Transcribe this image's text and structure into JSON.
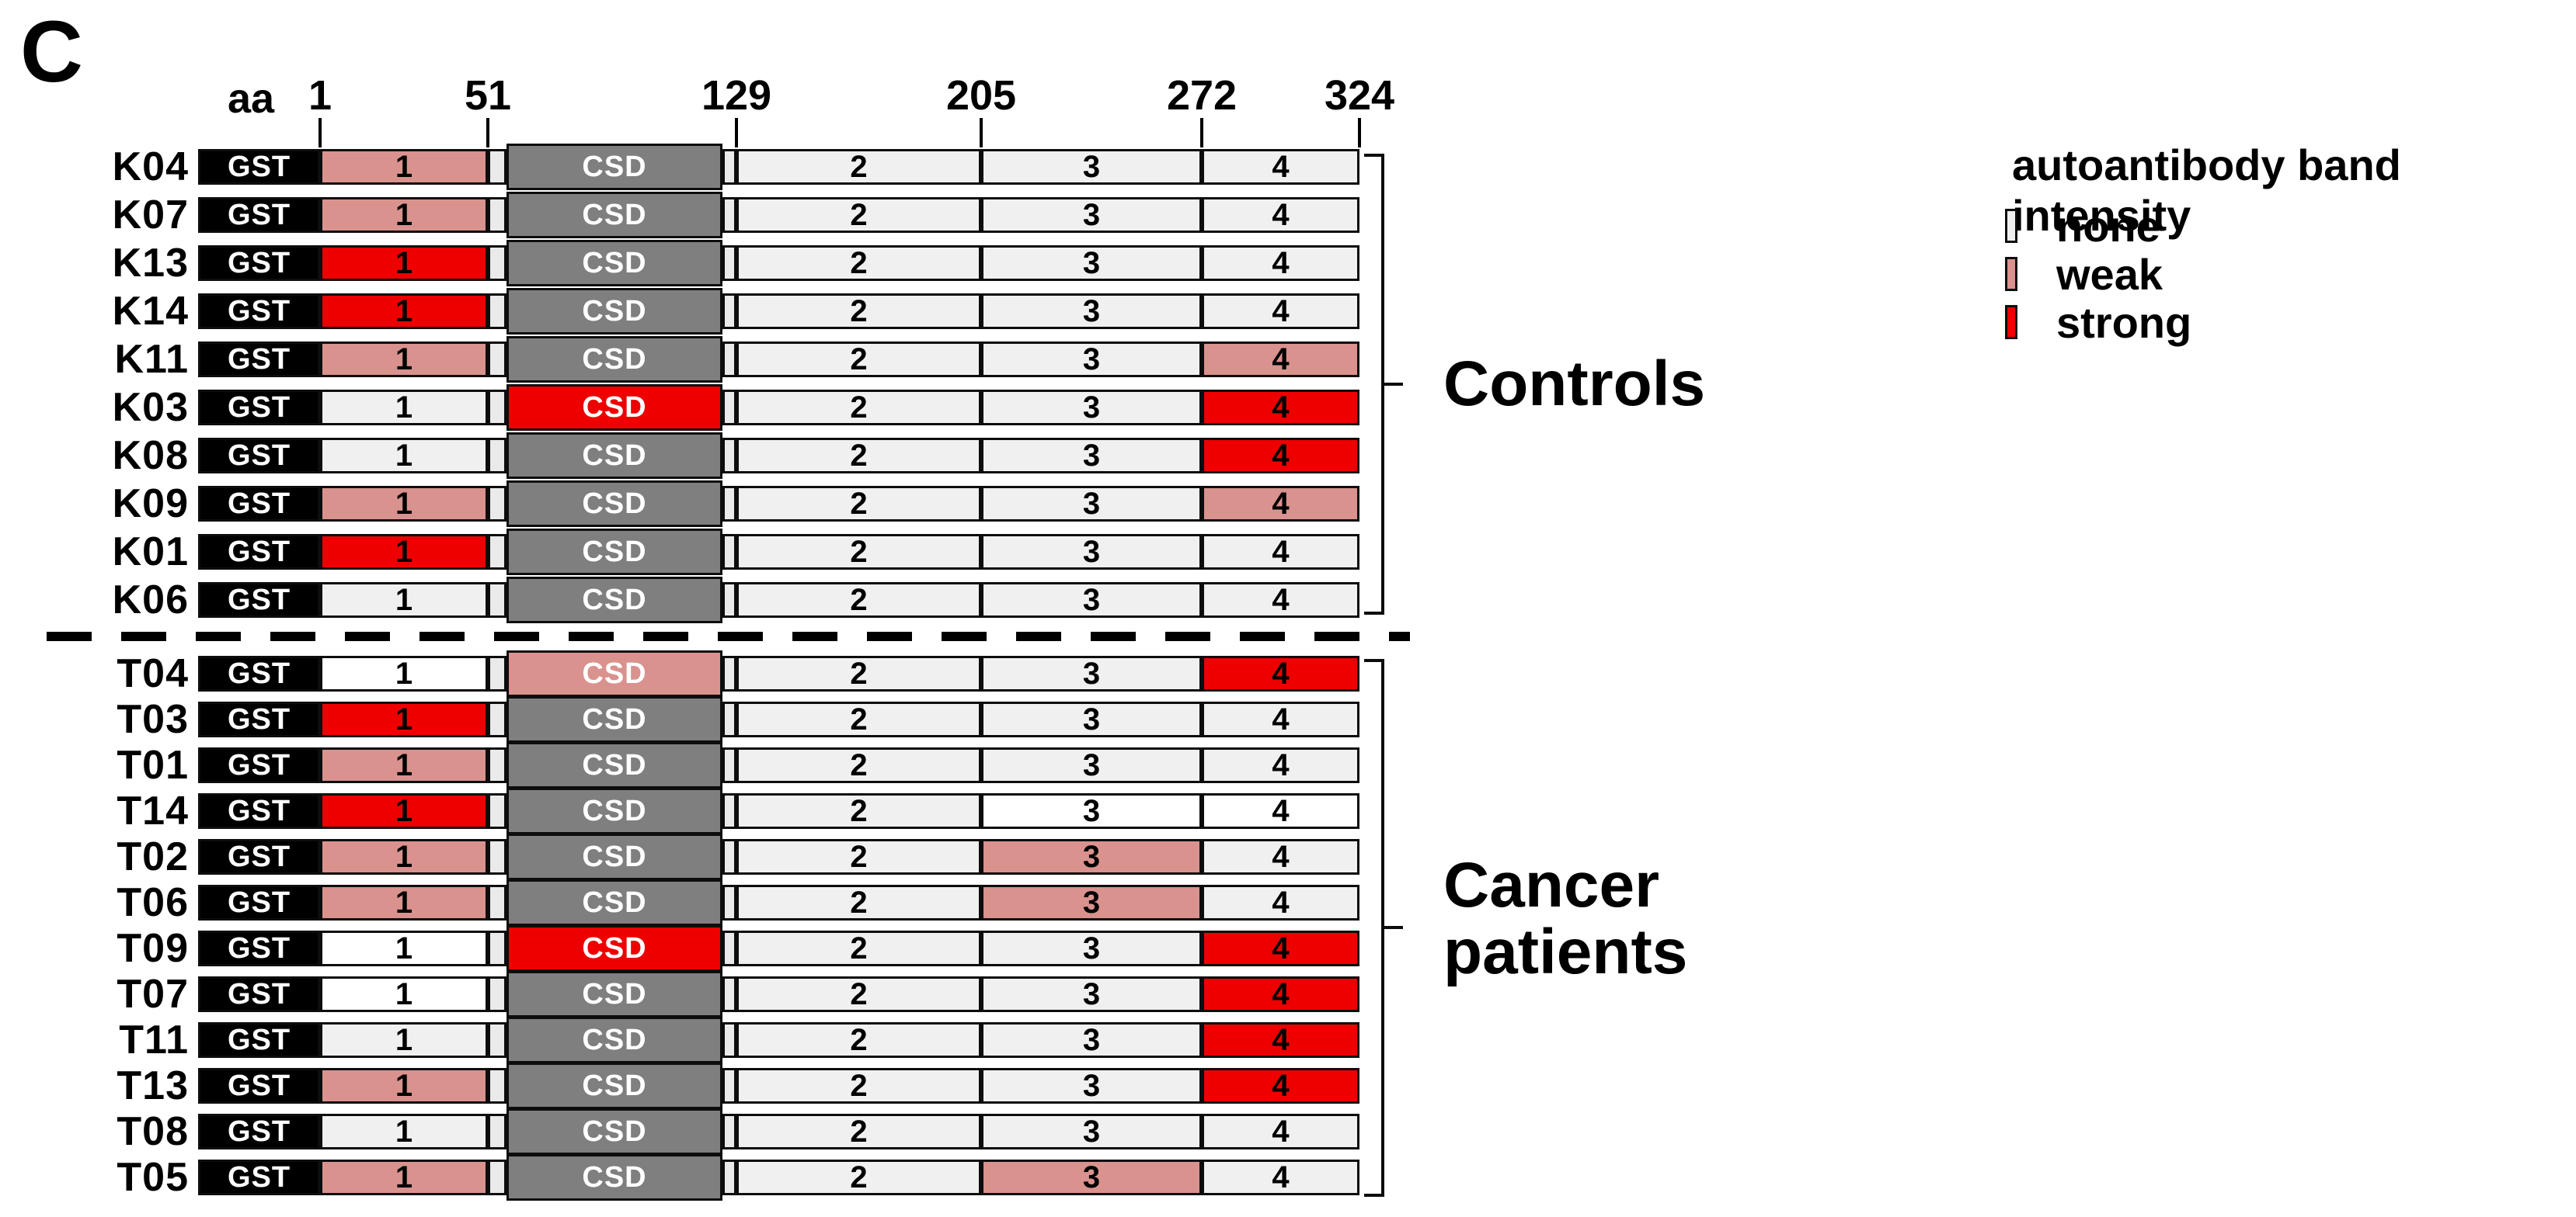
{
  "panel_label": "C",
  "axis": {
    "unit_label": "aa",
    "tick_labels": [
      "1",
      "51",
      "129",
      "205",
      "272",
      "324"
    ]
  },
  "construct": {
    "tag_label": "GST",
    "csd_label": "CSD",
    "region_labels": {
      "r1": "1",
      "r2": "2",
      "r3": "3",
      "r4": "4"
    }
  },
  "legend": {
    "title": "autoantibody band intensity",
    "items": [
      {
        "label": "none",
        "level": "none"
      },
      {
        "label": "weak",
        "level": "weak"
      },
      {
        "label": "strong",
        "level": "strong"
      }
    ]
  },
  "colors": {
    "none": "#f0f0f0",
    "none_white": "#ffffff",
    "weak": "#d9928e",
    "strong": "#ee0000",
    "csd_inactive": "#7f7f7f",
    "tag_fill": "#000000",
    "outline": "#0d0d0d"
  },
  "groups": [
    {
      "name": "Controls",
      "rows": [
        {
          "id": "K04",
          "bands": {
            "r1": "weak",
            "csd": "none",
            "r2": "none",
            "r3": "none",
            "r4": "none"
          }
        },
        {
          "id": "K07",
          "bands": {
            "r1": "weak",
            "csd": "none",
            "r2": "none",
            "r3": "none",
            "r4": "none"
          }
        },
        {
          "id": "K13",
          "bands": {
            "r1": "strong",
            "csd": "none",
            "r2": "none",
            "r3": "none",
            "r4": "none"
          }
        },
        {
          "id": "K14",
          "bands": {
            "r1": "strong",
            "csd": "none",
            "r2": "none",
            "r3": "none",
            "r4": "none"
          }
        },
        {
          "id": "K11",
          "bands": {
            "r1": "weak",
            "csd": "none",
            "r2": "none",
            "r3": "none",
            "r4": "weak"
          }
        },
        {
          "id": "K03",
          "bands": {
            "r1": "none",
            "csd": "strong",
            "r2": "none",
            "r3": "none",
            "r4": "strong"
          }
        },
        {
          "id": "K08",
          "bands": {
            "r1": "none",
            "csd": "none",
            "r2": "none",
            "r3": "none",
            "r4": "strong"
          }
        },
        {
          "id": "K09",
          "bands": {
            "r1": "weak",
            "csd": "none",
            "r2": "none",
            "r3": "none",
            "r4": "weak"
          }
        },
        {
          "id": "K01",
          "bands": {
            "r1": "strong",
            "csd": "none",
            "r2": "none",
            "r3": "none",
            "r4": "none"
          }
        },
        {
          "id": "K06",
          "bands": {
            "r1": "none",
            "csd": "none",
            "r2": "none",
            "r3": "none",
            "r4": "none"
          }
        }
      ]
    },
    {
      "name": "Cancer patients",
      "rows": [
        {
          "id": "T04",
          "bands": {
            "r1": "none_white",
            "csd": "weak",
            "r2": "none",
            "r3": "none",
            "r4": "strong"
          }
        },
        {
          "id": "T03",
          "bands": {
            "r1": "strong",
            "csd": "none",
            "r2": "none",
            "r3": "none",
            "r4": "none"
          }
        },
        {
          "id": "T01",
          "bands": {
            "r1": "weak",
            "csd": "none",
            "r2": "none",
            "r3": "none",
            "r4": "none"
          }
        },
        {
          "id": "T14",
          "bands": {
            "r1": "strong",
            "csd": "none",
            "r2": "none",
            "r3": "none_white",
            "r4": "none_white"
          }
        },
        {
          "id": "T02",
          "bands": {
            "r1": "weak",
            "csd": "none",
            "r2": "none",
            "r3": "weak",
            "r4": "none"
          }
        },
        {
          "id": "T06",
          "bands": {
            "r1": "weak",
            "csd": "none",
            "r2": "none",
            "r3": "weak",
            "r4": "none"
          }
        },
        {
          "id": "T09",
          "bands": {
            "r1": "none_white",
            "csd": "strong",
            "r2": "none",
            "r3": "none",
            "r4": "strong"
          }
        },
        {
          "id": "T07",
          "bands": {
            "r1": "none_white",
            "csd": "none",
            "r2": "none",
            "r3": "none",
            "r4": "strong"
          }
        },
        {
          "id": "T11",
          "bands": {
            "r1": "none",
            "csd": "none",
            "r2": "none",
            "r3": "none",
            "r4": "strong"
          }
        },
        {
          "id": "T13",
          "bands": {
            "r1": "weak",
            "csd": "none",
            "r2": "none",
            "r3": "none",
            "r4": "strong"
          }
        },
        {
          "id": "T08",
          "bands": {
            "r1": "none",
            "csd": "none",
            "r2": "none",
            "r3": "none",
            "r4": "none"
          }
        },
        {
          "id": "T05",
          "bands": {
            "r1": "weak",
            "csd": "none",
            "r2": "none",
            "r3": "weak",
            "r4": "none"
          }
        }
      ]
    }
  ]
}
